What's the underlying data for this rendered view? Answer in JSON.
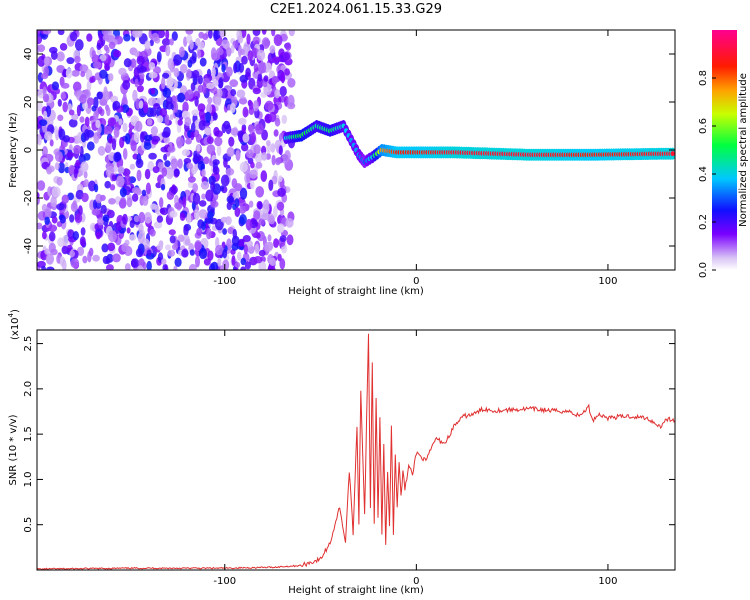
{
  "title": "C2E1.2024.061.15.33.G29",
  "chart_data": [
    {
      "type": "heatmap",
      "xlabel": "Height of straight line (km)",
      "ylabel": "Frequency (Hz)",
      "xlim": [
        -198,
        135
      ],
      "ylim": [
        -50,
        50
      ],
      "x_ticks": [
        -100,
        0,
        100
      ],
      "y_ticks": [
        -40,
        -20,
        0,
        20,
        40
      ],
      "colorbar": {
        "label": "Normalized spectral amplitude",
        "range": [
          0,
          1
        ],
        "ticks": [
          "0.0",
          "0.2",
          "0.4",
          "0.6",
          "0.8"
        ],
        "tick_values": [
          0,
          0.2,
          0.4,
          0.6,
          0.8
        ]
      },
      "signal_track": [
        {
          "x": -68,
          "y": 5,
          "a": 0.4
        },
        {
          "x": -60,
          "y": 6,
          "a": 0.55
        },
        {
          "x": -52,
          "y": 10,
          "a": 0.45
        },
        {
          "x": -45,
          "y": 8,
          "a": 0.5
        },
        {
          "x": -38,
          "y": 10,
          "a": 0.4
        },
        {
          "x": -34,
          "y": 4,
          "a": 0.35
        },
        {
          "x": -30,
          "y": -2,
          "a": 0.35
        },
        {
          "x": -27,
          "y": -5,
          "a": 0.3
        },
        {
          "x": -23,
          "y": -3,
          "a": 0.4
        },
        {
          "x": -18,
          "y": 0,
          "a": 0.75
        },
        {
          "x": -10,
          "y": -1,
          "a": 0.85
        },
        {
          "x": 0,
          "y": -1,
          "a": 0.85
        },
        {
          "x": 20,
          "y": -1,
          "a": 0.9
        },
        {
          "x": 60,
          "y": -2,
          "a": 0.9
        },
        {
          "x": 90,
          "y": -2,
          "a": 0.85
        },
        {
          "x": 135,
          "y": -1.5,
          "a": 0.9
        }
      ]
    },
    {
      "type": "line",
      "xlabel": "Height of straight line (km)",
      "ylabel": "SNR (10 * v/v)",
      "y_scale_label": "(x10",
      "y_scale_exponent": "4",
      "y_scale_suffix": ")",
      "xlim": [
        -198,
        135
      ],
      "ylim": [
        0,
        2.65
      ],
      "x_ticks": [
        -100,
        0,
        100
      ],
      "y_ticks": [
        0.5,
        1.0,
        1.5,
        2.0,
        2.5
      ],
      "y_tick_labels": [
        "0.5",
        "1.0",
        "1.5",
        "2.0",
        "2.5"
      ],
      "color": "#e03030",
      "series": [
        {
          "x": [
            -198,
            -150,
            -100,
            -75,
            -60,
            -50,
            -45,
            -40,
            -37,
            -35,
            -33,
            -31,
            -30,
            -29,
            -27,
            -25,
            -24,
            -23,
            -22,
            -21,
            -20,
            -19,
            -18,
            -17,
            -16,
            -15,
            -14,
            -13,
            -12,
            -11,
            -10,
            -9,
            -8,
            -7,
            -6,
            -5,
            -4,
            -2,
            0,
            5,
            10,
            15,
            20,
            25,
            30,
            35,
            40,
            50,
            60,
            70,
            80,
            85,
            90,
            92,
            95,
            100,
            110,
            120,
            128,
            130,
            135
          ],
          "y": [
            0.01,
            0.02,
            0.02,
            0.03,
            0.05,
            0.12,
            0.3,
            0.7,
            0.3,
            1.1,
            0.4,
            1.6,
            0.5,
            2.0,
            0.6,
            2.6,
            0.7,
            2.3,
            0.5,
            1.9,
            0.6,
            1.7,
            0.4,
            1.4,
            0.3,
            1.1,
            0.5,
            1.6,
            0.4,
            1.3,
            0.7,
            1.2,
            0.8,
            1.1,
            0.9,
            1.0,
            1.15,
            1.05,
            1.3,
            1.2,
            1.45,
            1.4,
            1.6,
            1.7,
            1.72,
            1.78,
            1.76,
            1.77,
            1.78,
            1.76,
            1.75,
            1.7,
            1.8,
            1.65,
            1.72,
            1.68,
            1.7,
            1.68,
            1.58,
            1.67,
            1.65
          ]
        }
      ]
    }
  ]
}
